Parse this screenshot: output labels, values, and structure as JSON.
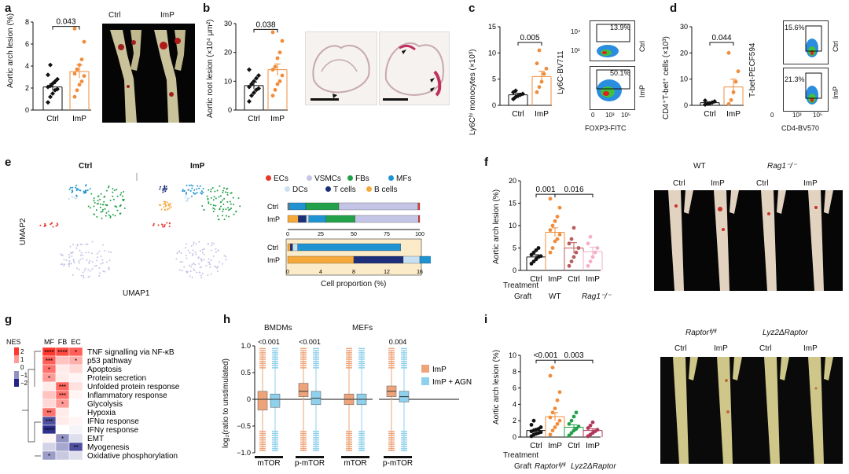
{
  "panels": {
    "a": {
      "label": "a",
      "ylabel": "Aortic arch lesion (%)",
      "pvalue": "0.043",
      "photo_labels": [
        "Ctrl",
        "ImP"
      ],
      "chart_data": {
        "type": "scatter",
        "categories": [
          "Ctrl",
          "ImP"
        ],
        "yticks": [
          "0",
          "2",
          "4",
          "6",
          "8"
        ],
        "ylim": [
          0,
          8
        ],
        "groups": [
          {
            "name": "Ctrl",
            "mean": 2.1,
            "sem": 0.3,
            "points": [
              0.7,
              1.2,
              1.5,
              1.8,
              1.9,
              2.1,
              2.2,
              2.4,
              2.6,
              2.8,
              3.2,
              4.1
            ]
          },
          {
            "name": "ImP",
            "mean": 3.5,
            "sem": 0.6,
            "points": [
              1.2,
              1.8,
              2.3,
              2.6,
              3.1,
              3.3,
              3.7,
              4.1,
              4.6,
              6.2,
              7.4
            ]
          }
        ]
      }
    },
    "b": {
      "label": "b",
      "ylabel": "Aortic root lesion (×10⁴ μm²)",
      "pvalue": "0.038",
      "chart_data": {
        "type": "scatter",
        "categories": [
          "Ctrl",
          "ImP"
        ],
        "yticks": [
          "0",
          "10",
          "20",
          "30"
        ],
        "ylim": [
          0,
          30
        ],
        "groups": [
          {
            "name": "Ctrl",
            "mean": 8.5,
            "sem": 1.2,
            "points": [
              3,
              5,
              6,
              7,
              7.5,
              8,
              9,
              10,
              11,
              12,
              14
            ]
          },
          {
            "name": "ImP",
            "mean": 14,
            "sem": 2,
            "points": [
              5,
              7,
              9,
              10,
              12,
              14,
              15,
              18,
              20,
              24,
              27
            ]
          }
        ]
      }
    },
    "c": {
      "label": "c",
      "ylabel": "Ly6Cʰⁱ monocytes (×10³)",
      "pvalue": "0.005",
      "flow_ylabel": "Ly6C-BV711",
      "flow_xlabel": "FOXP3-FITC",
      "flow_pcts": [
        "13.9%",
        "50.1%"
      ],
      "flow_groups": [
        "Ctrl",
        "ImP"
      ],
      "flow_yticks": [
        "10⁴",
        "10³",
        "10²",
        "0"
      ],
      "flow_xticks": [
        "0",
        "10³",
        "10⁵"
      ],
      "chart_data": {
        "type": "scatter",
        "categories": [
          "Ctrl",
          "ImP"
        ],
        "yticks": [
          "0",
          "5",
          "10",
          "15"
        ],
        "ylim": [
          0,
          15
        ],
        "groups": [
          {
            "name": "Ctrl",
            "mean": 2,
            "sem": 0.3,
            "points": [
              1.2,
              1.6,
              1.8,
              2,
              2.2,
              2.5,
              2.8
            ]
          },
          {
            "name": "ImP",
            "mean": 5.5,
            "sem": 1,
            "points": [
              2.5,
              3.5,
              4.5,
              6,
              7,
              8,
              10.5
            ]
          }
        ]
      }
    },
    "d": {
      "label": "d",
      "ylabel": "CD4⁺T-bet⁺ cells (×10³)",
      "pvalue": "0.044",
      "flow_ylabel": "T-bet-PECF594",
      "flow_xlabel": "CD4-BV570",
      "flow_pcts": [
        "15.6%",
        "21.3%"
      ],
      "flow_groups": [
        "Ctrl",
        "ImP"
      ],
      "flow_yticks": [
        "10⁴",
        "10³",
        "10²",
        "0"
      ],
      "flow_xticks": [
        "0",
        "10³",
        "10⁵"
      ],
      "chart_data": {
        "type": "scatter",
        "categories": [
          "Ctrl",
          "ImP"
        ],
        "yticks": [
          "0",
          "10",
          "20",
          "30"
        ],
        "ylim": [
          0,
          30
        ],
        "groups": [
          {
            "name": "Ctrl",
            "mean": 1,
            "sem": 0.3,
            "points": [
              0.3,
              0.6,
              0.8,
              1.1,
              1.5,
              1.8
            ]
          },
          {
            "name": "ImP",
            "mean": 7,
            "sem": 3,
            "points": [
              0.5,
              2,
              5,
              9,
              13,
              20
            ]
          }
        ]
      }
    },
    "e": {
      "label": "e",
      "umap_titles": [
        "Ctrl",
        "ImP"
      ],
      "xlabel": "UMAP1",
      "ylabel": "UMAP2",
      "legend": [
        {
          "name": "ECs",
          "color": "#e8382e"
        },
        {
          "name": "VSMCs",
          "color": "#c4c4e6"
        },
        {
          "name": "FBs",
          "color": "#22a04a"
        },
        {
          "name": "MFs",
          "color": "#1f93d2"
        },
        {
          "name": "DCs",
          "color": "#c8e0f2"
        },
        {
          "name": "T cells",
          "color": "#1d2f7a"
        },
        {
          "name": "B cells",
          "color": "#f4a93a"
        }
      ],
      "bar_xlabel": "Cell proportion (%)",
      "chart_data": {
        "type": "bar",
        "orientation": "horizontal",
        "stacked": true,
        "categories": [
          "Ctrl",
          "ImP"
        ],
        "xticks_top": [
          "0",
          "25",
          "50",
          "75",
          "100"
        ],
        "xticks_bottom": [
          "0",
          "4",
          "8",
          "12",
          "16"
        ],
        "series": [
          {
            "name": "B cells",
            "values": [
              0.3,
              8
            ]
          },
          {
            "name": "T cells",
            "values": [
              0.3,
              6
            ]
          },
          {
            "name": "DCs",
            "values": [
              0.6,
              2
            ]
          },
          {
            "name": "MFs",
            "values": [
              12.5,
              13
            ]
          },
          {
            "name": "FBs",
            "values": [
              25,
              22
            ]
          },
          {
            "name": "VSMCs",
            "values": [
              60,
              48
            ]
          },
          {
            "name": "ECs",
            "values": [
              1.3,
              1
            ]
          }
        ]
      }
    },
    "f": {
      "label": "f",
      "ylabel": "Aortic arch lesion (%)",
      "pvalues": [
        "0.001",
        "0.016"
      ],
      "treatment_label": "Treatment",
      "graft_label": "Graft",
      "graft_groups": [
        "WT",
        "Rag1⁻/⁻"
      ],
      "photo_groups": [
        "WT",
        "Rag1⁻/⁻"
      ],
      "photo_labels": [
        "Ctrl",
        "ImP",
        "Ctrl",
        "ImP"
      ],
      "chart_data": {
        "type": "scatter",
        "categories": [
          "Ctrl",
          "ImP",
          "Ctrl",
          "ImP"
        ],
        "yticks": [
          "0",
          "5",
          "10",
          "15",
          "20"
        ],
        "ylim": [
          0,
          20
        ],
        "groups": [
          {
            "name": "WT Ctrl",
            "mean": 3,
            "sem": 0.5,
            "color": "#111111",
            "points": [
              1.5,
              2,
              2.5,
              3,
              3.2,
              3.5,
              4,
              4.5,
              5
            ]
          },
          {
            "name": "WT ImP",
            "mean": 8.5,
            "sem": 1,
            "color": "#f08c3a",
            "points": [
              4,
              5,
              6.5,
              7,
              8,
              9,
              10,
              11,
              12,
              14,
              16
            ]
          },
          {
            "name": "Rag1 Ctrl",
            "mean": 5,
            "sem": 1.2,
            "color": "#b85c5c",
            "points": [
              1,
              2,
              3,
              4,
              5,
              6,
              7,
              9.5
            ]
          },
          {
            "name": "Rag1 ImP",
            "mean": 4.2,
            "sem": 1,
            "color": "#f3b0c8",
            "points": [
              1,
              2,
              3,
              4,
              5,
              6,
              7.5
            ]
          }
        ]
      }
    },
    "g": {
      "label": "g",
      "nes_label": "NES",
      "nes_ticks": [
        "2",
        "1",
        "0",
        "−1",
        "−2"
      ],
      "columns": [
        "MF",
        "FB",
        "EC"
      ],
      "chart_data": {
        "type": "heatmap",
        "rows": [
          "TNF signalling via NF-κB",
          "p53 pathway",
          "Apoptosis",
          "Protein secretion",
          "Unfolded protein response",
          "Inflammatory response",
          "Glycolysis",
          "Hypoxia",
          "IFNα response",
          "IFNγ response",
          "EMT",
          "Myogenesis",
          "Oxidative phosphorylation"
        ],
        "columns": [
          "MF",
          "FB",
          "EC"
        ],
        "values": [
          [
            2,
            1.8,
            1.6
          ],
          [
            1.6,
            0.6,
            0.8
          ],
          [
            1.4,
            0.2,
            0.4
          ],
          [
            1,
            0.2,
            0.1
          ],
          [
            0.2,
            1.5,
            0.3
          ],
          [
            0.6,
            1.4,
            0.1
          ],
          [
            0.4,
            1,
            0
          ],
          [
            1.4,
            0.2,
            0
          ],
          [
            -1.6,
            0.2,
            0.1
          ],
          [
            -1.9,
            0,
            -0.1
          ],
          [
            0.1,
            -1,
            -0.3
          ],
          [
            -0.4,
            -0.8,
            -1.6
          ],
          [
            -0.9,
            -0.5,
            -0.3
          ]
        ],
        "stars": [
          [
            "****",
            "****",
            "*"
          ],
          [
            "***",
            "",
            "*"
          ],
          [
            "*",
            "",
            ""
          ],
          [
            "*",
            "",
            ""
          ],
          [
            "",
            "***",
            ""
          ],
          [
            "",
            "***",
            ""
          ],
          [
            "",
            "*",
            ""
          ],
          [
            "**",
            "",
            ""
          ],
          [
            "***",
            "",
            ""
          ],
          [
            "****",
            "",
            ""
          ],
          [
            "",
            "*",
            ""
          ],
          [
            "",
            "",
            "**"
          ],
          [
            "*",
            "",
            ""
          ]
        ]
      }
    },
    "h": {
      "label": "h",
      "titles": [
        "BMDMs",
        "MEFs"
      ],
      "ylabel": "log₂(ratio to unstimulated)",
      "pvalues": [
        "<0.001",
        "<0.001",
        "",
        "0.004"
      ],
      "group_labels": [
        "mTOR",
        "p-mTOR",
        "mTOR",
        "p-mTOR"
      ],
      "legend": [
        {
          "name": "ImP",
          "color": "#eea47a"
        },
        {
          "name": "ImP + AGN",
          "color": "#8fd0ec"
        }
      ],
      "chart_data": {
        "type": "box",
        "yticks": [
          "1.0",
          "0.5",
          "0",
          "−0.5",
          "−1.0"
        ],
        "ylim": [
          -1,
          1
        ],
        "groups": [
          {
            "name": "BMDMs mTOR",
            "ImP": {
              "q1": -0.2,
              "med": 0,
              "q3": 0.15
            },
            "AGN": {
              "q1": -0.15,
              "med": 0,
              "q3": 0.1
            }
          },
          {
            "name": "BMDMs p-mTOR",
            "ImP": {
              "q1": 0.05,
              "med": 0.15,
              "q3": 0.3
            },
            "AGN": {
              "q1": -0.1,
              "med": 0.02,
              "q3": 0.15
            }
          },
          {
            "name": "MEFs mTOR",
            "ImP": {
              "q1": -0.1,
              "med": 0,
              "q3": 0.1
            },
            "AGN": {
              "q1": -0.1,
              "med": 0,
              "q3": 0.1
            }
          },
          {
            "name": "MEFs p-mTOR",
            "ImP": {
              "q1": 0.05,
              "med": 0.15,
              "q3": 0.25
            },
            "AGN": {
              "q1": -0.05,
              "med": 0.05,
              "q3": 0.15
            }
          }
        ]
      }
    },
    "i": {
      "label": "i",
      "ylabel": "Aortic arch lesion (%)",
      "pvalues": [
        "<0.001",
        "0.003"
      ],
      "treatment_label": "Treatment",
      "graft_label": "Graft",
      "graft_groups": [
        "Raptorᶠˡ/ᶠˡ",
        "Lyz2ΔRaptor"
      ],
      "photo_groups": [
        "Raptorᶠˡ/ᶠˡ",
        "Lyz2ΔRaptor"
      ],
      "photo_labels": [
        "Ctrl",
        "ImP",
        "Ctrl",
        "ImP"
      ],
      "chart_data": {
        "type": "scatter",
        "categories": [
          "Ctrl",
          "ImP",
          "Ctrl",
          "ImP"
        ],
        "yticks": [
          "0",
          "2",
          "4",
          "6",
          "8",
          "10"
        ],
        "ylim": [
          0,
          10
        ],
        "groups": [
          {
            "name": "Raptor Ctrl",
            "mean": 0.8,
            "sem": 0.2,
            "color": "#111111",
            "points": [
              0.1,
              0.3,
              0.4,
              0.5,
              0.6,
              0.7,
              0.8,
              0.9,
              1,
              1.2,
              1.5,
              2
            ]
          },
          {
            "name": "Raptor ImP",
            "mean": 2.5,
            "sem": 0.5,
            "color": "#f08c3a",
            "points": [
              0.3,
              0.8,
              1.2,
              1.6,
              2,
              2.4,
              3,
              3.5,
              4.5,
              5.5,
              7.5,
              8.5
            ]
          },
          {
            "name": "Lyz2 Ctrl",
            "mean": 1.2,
            "sem": 0.3,
            "color": "#22a04a",
            "points": [
              0.2,
              0.5,
              0.8,
              1,
              1.3,
              1.6,
              2,
              2.5,
              3
            ]
          },
          {
            "name": "Lyz2 ImP",
            "mean": 0.8,
            "sem": 0.2,
            "color": "#b0385a",
            "points": [
              0.1,
              0.3,
              0.5,
              0.7,
              0.9,
              1.1,
              1.4,
              1.8
            ]
          }
        ]
      }
    }
  }
}
